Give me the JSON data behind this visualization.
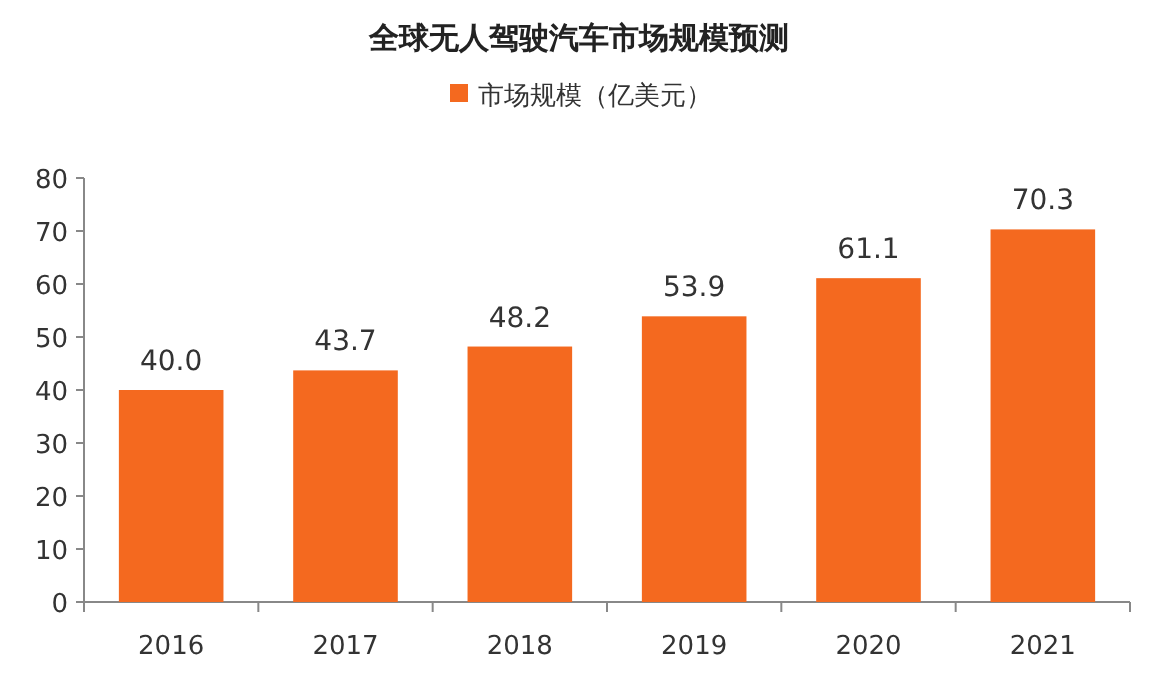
{
  "chart_data": {
    "type": "bar",
    "title": "全球无人驾驶汽车市场规模预测",
    "categories": [
      "2016",
      "2017",
      "2018",
      "2019",
      "2020",
      "2021"
    ],
    "series": [
      {
        "name": "市场规模（亿美元）",
        "color": "#f4691f",
        "values": [
          40.0,
          43.7,
          48.2,
          53.9,
          61.1,
          70.3
        ],
        "value_labels": [
          "40.0",
          "43.7",
          "48.2",
          "53.9",
          "61.1",
          "70.3"
        ]
      }
    ],
    "ylim": [
      0,
      80
    ],
    "yticks": [
      0,
      10,
      20,
      30,
      40,
      50,
      60,
      70,
      80
    ],
    "legend": "top",
    "grid": false
  }
}
